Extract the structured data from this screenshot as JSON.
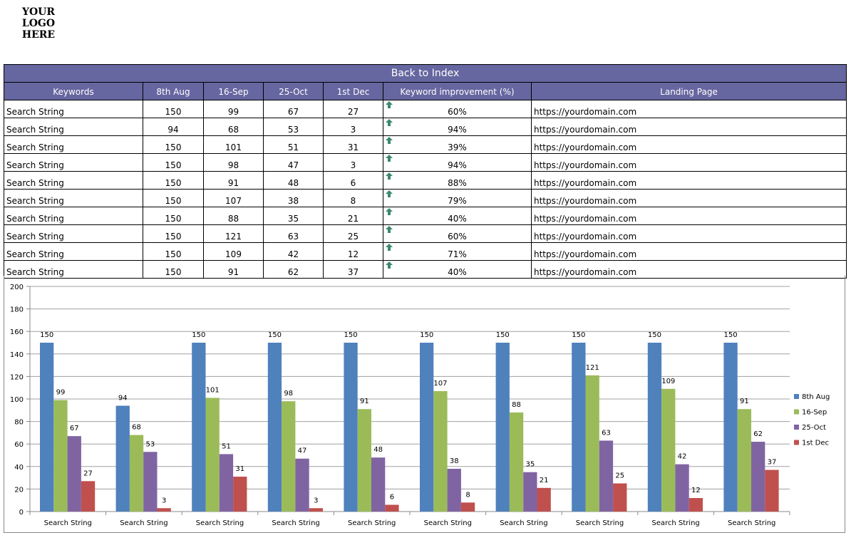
{
  "logo": {
    "lines": [
      "YOUR",
      "LOGO",
      "HERE"
    ]
  },
  "table": {
    "banner": "Back to Index",
    "columns": [
      "Keywords",
      "8th Aug",
      "16-Sep",
      "25-Oct",
      "1st Dec",
      "Keyword improvement (%)",
      "Landing Page"
    ],
    "rows": [
      [
        "Search String",
        "150",
        "99",
        "67",
        "27",
        "60%",
        "https://yourdomain.com"
      ],
      [
        "Search String",
        "94",
        "68",
        "53",
        "3",
        "94%",
        "https://yourdomain.com"
      ],
      [
        "Search String",
        "150",
        "101",
        "51",
        "31",
        "39%",
        "https://yourdomain.com"
      ],
      [
        "Search String",
        "150",
        "98",
        "47",
        "3",
        "94%",
        "https://yourdomain.com"
      ],
      [
        "Search String",
        "150",
        "91",
        "48",
        "6",
        "88%",
        "https://yourdomain.com"
      ],
      [
        "Search String",
        "150",
        "107",
        "38",
        "8",
        "79%",
        "https://yourdomain.com"
      ],
      [
        "Search String",
        "150",
        "88",
        "35",
        "21",
        "40%",
        "https://yourdomain.com"
      ],
      [
        "Search String",
        "150",
        "121",
        "63",
        "25",
        "60%",
        "https://yourdomain.com"
      ],
      [
        "Search String",
        "150",
        "109",
        "42",
        "12",
        "71%",
        "https://yourdomain.com"
      ],
      [
        "Search String",
        "150",
        "91",
        "62",
        "37",
        "40%",
        "https://yourdomain.com"
      ]
    ],
    "arrow_icon": "up-arrow-icon",
    "arrow_color": "#3a8a6a",
    "header_color": "#6666a0"
  },
  "chart_data": {
    "type": "bar",
    "categories": [
      "Search String",
      "Search String",
      "Search String",
      "Search String",
      "Search String",
      "Search String",
      "Search String",
      "Search String",
      "Search String",
      "Search String"
    ],
    "series": [
      {
        "name": "8th Aug",
        "color": "#4f81bd",
        "values": [
          150,
          94,
          150,
          150,
          150,
          150,
          150,
          150,
          150,
          150
        ]
      },
      {
        "name": "16-Sep",
        "color": "#9bbb59",
        "values": [
          99,
          68,
          101,
          98,
          91,
          107,
          88,
          121,
          109,
          91
        ]
      },
      {
        "name": "25-Oct",
        "color": "#8064a2",
        "values": [
          67,
          53,
          51,
          47,
          48,
          38,
          35,
          63,
          42,
          62
        ]
      },
      {
        "name": "1st Dec",
        "color": "#c0504d",
        "values": [
          27,
          3,
          31,
          3,
          6,
          8,
          21,
          25,
          12,
          37
        ]
      }
    ],
    "ylim": [
      0,
      200
    ],
    "yticks": [
      0,
      20,
      40,
      60,
      80,
      100,
      120,
      140,
      160,
      180,
      200
    ],
    "grid": true,
    "legend": "right",
    "data_labels": true
  }
}
